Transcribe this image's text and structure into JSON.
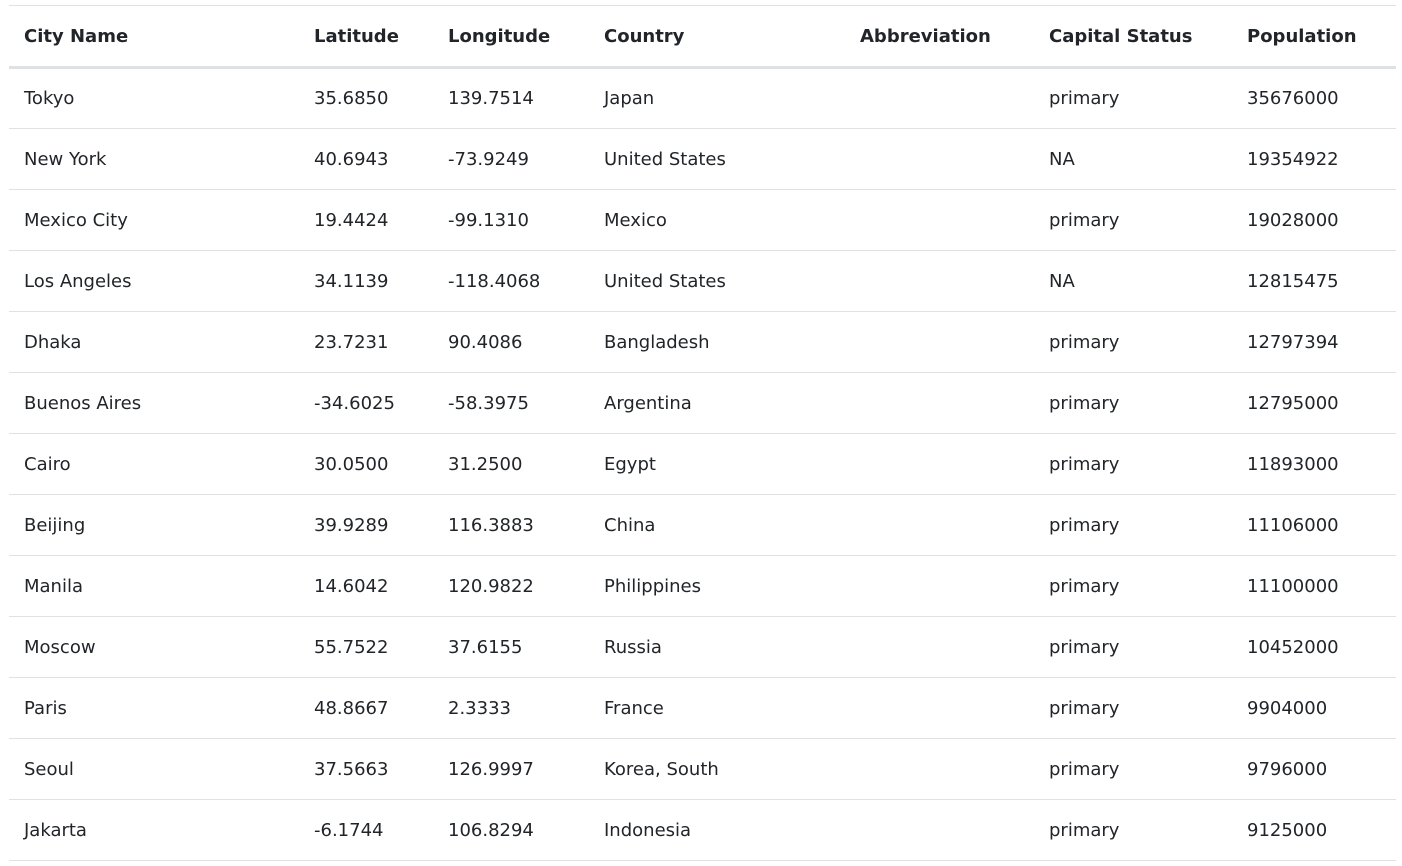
{
  "table": {
    "headers": [
      "City Name",
      "Latitude",
      "Longitude",
      "Country",
      "Abbreviation",
      "Capital Status",
      "Population"
    ],
    "rows": [
      [
        "Tokyo",
        "35.6850",
        "139.7514",
        "Japan",
        "",
        "primary",
        "35676000"
      ],
      [
        "New York",
        "40.6943",
        "-73.9249",
        "United States",
        "",
        "NA",
        "19354922"
      ],
      [
        "Mexico City",
        "19.4424",
        "-99.1310",
        "Mexico",
        "",
        "primary",
        "19028000"
      ],
      [
        "Los Angeles",
        "34.1139",
        "-118.4068",
        "United States",
        "",
        "NA",
        "12815475"
      ],
      [
        "Dhaka",
        "23.7231",
        "90.4086",
        "Bangladesh",
        "",
        "primary",
        "12797394"
      ],
      [
        "Buenos Aires",
        "-34.6025",
        "-58.3975",
        "Argentina",
        "",
        "primary",
        "12795000"
      ],
      [
        "Cairo",
        "30.0500",
        "31.2500",
        "Egypt",
        "",
        "primary",
        "11893000"
      ],
      [
        "Beijing",
        "39.9289",
        "116.3883",
        "China",
        "",
        "primary",
        "11106000"
      ],
      [
        "Manila",
        "14.6042",
        "120.9822",
        "Philippines",
        "",
        "primary",
        "11100000"
      ],
      [
        "Moscow",
        "55.7522",
        "37.6155",
        "Russia",
        "",
        "primary",
        "10452000"
      ],
      [
        "Paris",
        "48.8667",
        "2.3333",
        "France",
        "",
        "primary",
        "9904000"
      ],
      [
        "Seoul",
        "37.5663",
        "126.9997",
        "Korea, South",
        "",
        "primary",
        "9796000"
      ],
      [
        "Jakarta",
        "-6.1744",
        "106.8294",
        "Indonesia",
        "",
        "primary",
        "9125000"
      ]
    ]
  }
}
